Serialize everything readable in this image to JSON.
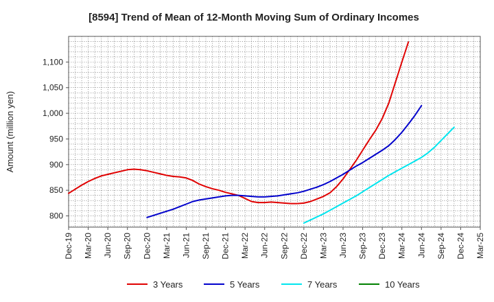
{
  "chart_data": {
    "type": "line",
    "title": "[8594]  Trend of Mean of 12-Month Moving Sum of Ordinary Incomes",
    "xlabel": "",
    "ylabel": "Amount (million yen)",
    "ylim": [
      778,
      1150
    ],
    "yticks": [
      800,
      850,
      900,
      950,
      1000,
      1050,
      1100
    ],
    "ytick_labels": [
      "800",
      "850",
      "900",
      "950",
      "1,000",
      "1,050",
      "1,100"
    ],
    "x_months": [
      "Dec-19",
      "Jan-20",
      "Feb-20",
      "Mar-20",
      "Apr-20",
      "May-20",
      "Jun-20",
      "Jul-20",
      "Aug-20",
      "Sep-20",
      "Oct-20",
      "Nov-20",
      "Dec-20",
      "Jan-21",
      "Feb-21",
      "Mar-21",
      "Apr-21",
      "May-21",
      "Jun-21",
      "Jul-21",
      "Aug-21",
      "Sep-21",
      "Oct-21",
      "Nov-21",
      "Dec-21",
      "Jan-22",
      "Feb-22",
      "Mar-22",
      "Apr-22",
      "May-22",
      "Jun-22",
      "Jul-22",
      "Aug-22",
      "Sep-22",
      "Oct-22",
      "Nov-22",
      "Dec-22",
      "Jan-23",
      "Feb-23",
      "Mar-23",
      "Apr-23",
      "May-23",
      "Jun-23",
      "Jul-23",
      "Aug-23",
      "Sep-23",
      "Oct-23",
      "Nov-23",
      "Dec-23",
      "Jan-24",
      "Feb-24",
      "Mar-24",
      "Apr-24",
      "May-24",
      "Jun-24",
      "Jul-24",
      "Aug-24",
      "Sep-24",
      "Oct-24",
      "Nov-24",
      "Dec-24",
      "Jan-25",
      "Feb-25",
      "Mar-25"
    ],
    "xtick_labels": [
      "Dec-19",
      "Mar-20",
      "Jun-20",
      "Sep-20",
      "Dec-20",
      "Mar-21",
      "Jun-21",
      "Sep-21",
      "Dec-21",
      "Mar-22",
      "Jun-22",
      "Sep-22",
      "Dec-22",
      "Mar-23",
      "Jun-23",
      "Sep-23",
      "Dec-23",
      "Mar-24",
      "Jun-24",
      "Sep-24",
      "Dec-24",
      "Mar-25"
    ],
    "grid": true,
    "legend_position": "bottom",
    "series": [
      {
        "name": "3 Years",
        "color": "#e00000",
        "start_index": 0,
        "values": [
          844,
          852,
          860,
          867,
          873,
          878,
          881,
          884,
          887,
          890,
          891,
          890,
          888,
          885,
          882,
          879,
          877,
          876,
          874,
          869,
          862,
          857,
          853,
          850,
          846,
          843,
          840,
          834,
          828,
          826,
          826,
          827,
          826,
          825,
          824,
          824,
          825,
          828,
          833,
          838,
          845,
          857,
          872,
          890,
          908,
          928,
          948,
          967,
          990,
          1020,
          1060,
          1100,
          1139
        ]
      },
      {
        "name": "5 Years",
        "color": "#0000cc",
        "start_index": 12,
        "values": [
          797,
          801,
          805,
          809,
          813,
          818,
          823,
          828,
          831,
          833,
          835,
          837,
          839,
          840,
          840,
          839,
          838,
          837,
          837,
          838,
          839,
          841,
          843,
          845,
          848,
          852,
          856,
          861,
          867,
          874,
          881,
          889,
          897,
          904,
          912,
          920,
          928,
          937,
          949,
          963,
          979,
          996,
          1015
        ]
      },
      {
        "name": "7 Years",
        "color": "#00e5ee",
        "start_index": 36,
        "values": [
          786,
          792,
          798,
          804,
          811,
          818,
          825,
          832,
          839,
          847,
          855,
          863,
          871,
          879,
          886,
          893,
          900,
          907,
          914,
          923,
          934,
          947,
          960,
          973
        ]
      },
      {
        "name": "10 Years",
        "color": "#008000",
        "start_index": 0,
        "values": []
      }
    ]
  }
}
